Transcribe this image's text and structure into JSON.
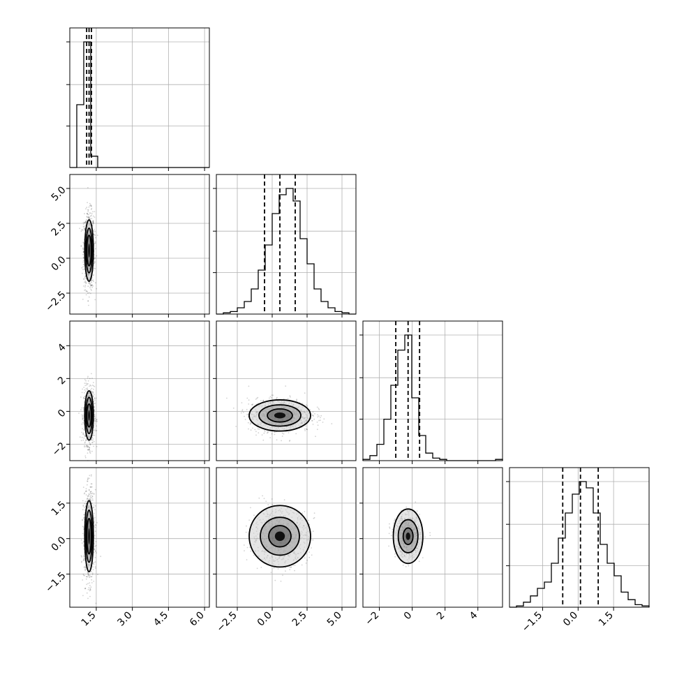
{
  "chart_data": {
    "type": "corner",
    "title": "",
    "parameters": [
      {
        "label": "",
        "range": [
          0.4,
          6.2
        ],
        "ticks": [
          1.5,
          3.0,
          4.5,
          6.0
        ],
        "tick_labels": [
          "1.5",
          "3.0",
          "4.5",
          "6.0"
        ],
        "median": 1.2,
        "q16": 1.1,
        "q84": 1.3
      },
      {
        "label": "",
        "range": [
          -4.0,
          6.0
        ],
        "ticks": [
          -2.5,
          0.0,
          2.5,
          5.0
        ],
        "tick_labels": [
          "−2.5",
          "0.0",
          "2.5",
          "5.0"
        ],
        "median": 0.55,
        "q16": -0.55,
        "q84": 1.65
      },
      {
        "label": "",
        "range": [
          -3.0,
          5.5
        ],
        "ticks": [
          -2,
          0,
          2,
          4
        ],
        "tick_labels": [
          "−2",
          "0",
          "2",
          "4"
        ],
        "median": -0.25,
        "q16": -1.0,
        "q84": 0.45
      },
      {
        "label": "",
        "range": [
          -2.9,
          3.0
        ],
        "ticks": [
          -1.5,
          0.0,
          1.5
        ],
        "tick_labels": [
          "−1.5",
          "0.0",
          "1.5"
        ],
        "median": 0.1,
        "q16": -0.65,
        "q84": 0.85
      }
    ],
    "diagonal_histograms": [
      {
        "bin_edges": [
          0.4,
          0.69,
          0.98,
          1.27,
          1.56,
          1.85,
          2.14,
          2.43,
          2.72,
          3.01,
          3.3,
          3.59,
          3.88,
          4.17,
          4.46,
          4.75,
          5.04,
          5.33,
          5.62,
          5.91,
          6.2
        ],
        "counts": [
          0,
          0.5,
          1.0,
          0.09,
          0,
          0,
          0,
          0,
          0,
          0,
          0,
          0,
          0,
          0,
          0,
          0,
          0,
          0,
          0,
          0
        ]
      },
      {
        "bin_edges": [
          -4.0,
          -3.5,
          -3.0,
          -2.5,
          -2.0,
          -1.5,
          -1.0,
          -0.5,
          0.0,
          0.5,
          1.0,
          1.5,
          2.0,
          2.5,
          3.0,
          3.5,
          4.0,
          4.5,
          5.0,
          5.5,
          6.0
        ],
        "counts": [
          0,
          0.01,
          0.02,
          0.05,
          0.1,
          0.2,
          0.35,
          0.55,
          0.8,
          0.95,
          1.0,
          0.9,
          0.6,
          0.4,
          0.2,
          0.1,
          0.05,
          0.02,
          0.01,
          0
        ]
      },
      {
        "bin_edges": [
          -3.0,
          -2.575,
          -2.15,
          -1.725,
          -1.3,
          -0.875,
          -0.45,
          -0.025,
          0.4,
          0.825,
          1.25,
          1.675,
          2.1,
          2.525,
          2.95,
          3.375,
          3.8,
          4.225,
          4.65,
          5.075,
          5.5
        ],
        "counts": [
          0.01,
          0.04,
          0.13,
          0.33,
          0.6,
          0.88,
          1.0,
          0.5,
          0.2,
          0.06,
          0.02,
          0.01,
          0,
          0,
          0,
          0,
          0,
          0,
          0,
          0.01
        ]
      },
      {
        "bin_edges": [
          -2.9,
          -2.605,
          -2.31,
          -2.015,
          -1.72,
          -1.425,
          -1.13,
          -0.835,
          -0.54,
          -0.245,
          0.05,
          0.345,
          0.64,
          0.935,
          1.23,
          1.525,
          1.82,
          2.115,
          2.41,
          2.705,
          3.0
        ],
        "counts": [
          0,
          0.01,
          0.04,
          0.09,
          0.15,
          0.2,
          0.35,
          0.55,
          0.75,
          0.9,
          1.0,
          0.95,
          0.75,
          0.5,
          0.35,
          0.25,
          0.12,
          0.06,
          0.02,
          0.01
        ]
      }
    ],
    "pairs": [
      {
        "row": 1,
        "col": 0,
        "center": [
          1.2,
          0.55
        ],
        "contour_halfwidths": [
          [
            0.09,
            1.1
          ],
          [
            0.13,
            1.6
          ],
          [
            0.18,
            2.2
          ]
        ]
      },
      {
        "row": 2,
        "col": 0,
        "center": [
          1.2,
          -0.25
        ],
        "contour_halfwidths": [
          [
            0.09,
            0.7
          ],
          [
            0.13,
            1.1
          ],
          [
            0.18,
            1.5
          ]
        ]
      },
      {
        "row": 2,
        "col": 1,
        "center": [
          0.55,
          -0.25
        ],
        "contour_halfwidths": [
          [
            0.9,
            0.4
          ],
          [
            1.5,
            0.65
          ],
          [
            2.2,
            0.95
          ]
        ]
      },
      {
        "row": 3,
        "col": 0,
        "center": [
          1.2,
          0.1
        ],
        "contour_halfwidths": [
          [
            0.09,
            0.75
          ],
          [
            0.13,
            1.1
          ],
          [
            0.18,
            1.5
          ]
        ]
      },
      {
        "row": 3,
        "col": 1,
        "center": [
          0.55,
          0.1
        ],
        "contour_halfwidths": [
          [
            0.8,
            0.45
          ],
          [
            1.4,
            0.8
          ],
          [
            2.2,
            1.3
          ]
        ]
      },
      {
        "row": 3,
        "col": 2,
        "center": [
          -0.25,
          0.1
        ],
        "contour_halfwidths": [
          [
            0.3,
            0.35
          ],
          [
            0.6,
            0.7
          ],
          [
            0.9,
            1.15
          ]
        ]
      }
    ]
  }
}
